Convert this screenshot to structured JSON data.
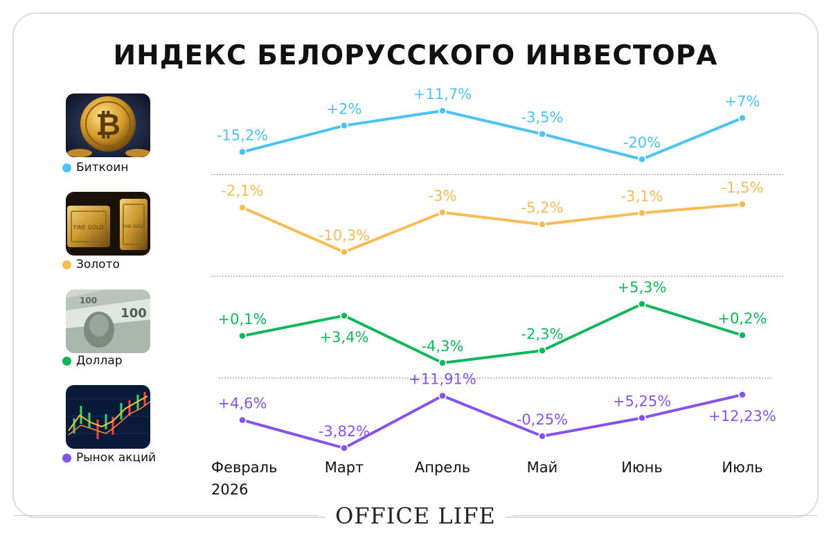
{
  "title": "ИНДЕКС БЕЛОРУССКОГО ИНВЕСТОРА",
  "brand": "OFFICE LIFE",
  "chart_data": {
    "type": "line",
    "categories": [
      "Февраль\n2026",
      "Март",
      "Апрель",
      "Май",
      "Июнь",
      "Июль"
    ],
    "series": [
      {
        "name": "Биткоин",
        "color": "#4cc3f5",
        "values": [
          -15.2,
          2,
          11.7,
          -3.5,
          -20,
          7
        ],
        "labels": [
          "-15,2%",
          "+2%",
          "+11,7%",
          "-3,5%",
          "-20%",
          "+7%"
        ],
        "icon": "bitcoin-coin-icon"
      },
      {
        "name": "Золото",
        "color": "#f8bb55",
        "values": [
          -2.1,
          -10.3,
          -3,
          -5.2,
          -3.1,
          -1.5
        ],
        "labels": [
          "-2,1%",
          "-10,3%",
          "-3%",
          "-5,2%",
          "-3,1%",
          "-1,5%"
        ],
        "icon": "gold-bars-icon"
      },
      {
        "name": "Доллар",
        "color": "#12b65a",
        "values": [
          0.1,
          3.4,
          -4.3,
          -2.3,
          5.3,
          0.2
        ],
        "labels": [
          "+0,1%",
          "+3,4%",
          "-4,3%",
          "-2,3%",
          "+5,3%",
          "+0,2%"
        ],
        "icon": "dollar-banknotes-icon"
      },
      {
        "name": "Рынок акций",
        "color": "#8652ef",
        "values": [
          4.6,
          -3.82,
          11.91,
          -0.25,
          5.25,
          12.23
        ],
        "labels": [
          "+4,6%",
          "-3,82%",
          "+11,91%",
          "-0,25%",
          "+5,25%",
          "+12,23%"
        ],
        "icon": "stock-chart-icon"
      }
    ]
  }
}
